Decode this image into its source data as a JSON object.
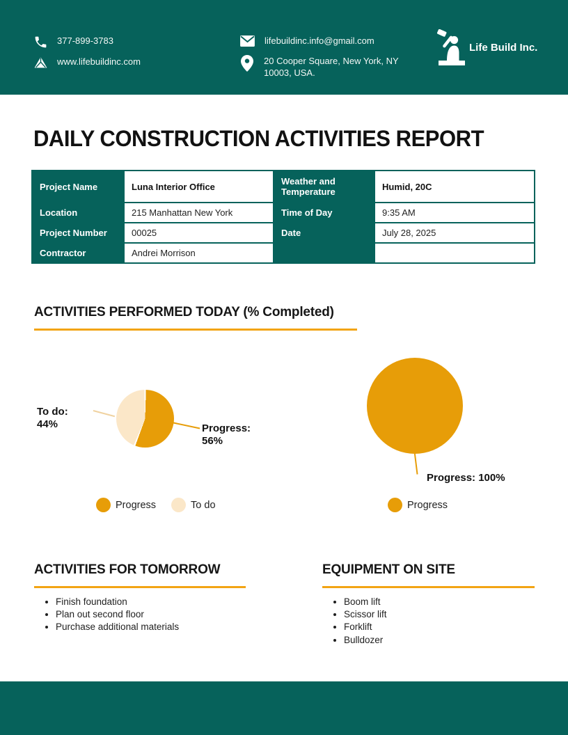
{
  "theme": {
    "teal": "#06625B",
    "orange": "#E79D08",
    "cream": "#FBE7C8",
    "underline_orange": "#F2A413"
  },
  "header": {
    "company": "Life Build Inc.",
    "phone": "377-899-3783",
    "website": "www.lifebuildinc.com",
    "email": "lifebuildinc.info@gmail.com",
    "address_line1": "20 Cooper Square, New York, NY",
    "address_line2": "10003, USA.",
    "icons": [
      "phone-icon",
      "drive-icon",
      "mail-icon",
      "location-pin-icon",
      "construction-worker-icon"
    ]
  },
  "title": "DAILY CONSTRUCTION ACTIVITIES REPORT",
  "project_table": {
    "rows": [
      {
        "label1": "Project Name",
        "value1": "Luna Interior Office",
        "label2": "Weather and Temperature",
        "value2": "Humid, 20C"
      },
      {
        "label1": "Location",
        "value1": "215 Manhattan New York",
        "label2": "Time of Day",
        "value2": "9:35 AM"
      },
      {
        "label1": "Project Number",
        "value1": "00025",
        "label2": "Date",
        "value2": "July 28, 2025"
      },
      {
        "label1": "Contractor",
        "value1": "Andrei Morrison",
        "label2": "",
        "value2": ""
      }
    ]
  },
  "activities_section": {
    "heading": "ACTIVITIES PERFORMED TODAY (% Completed)"
  },
  "chart_data": [
    {
      "type": "pie",
      "title": "Activity completion — task 1",
      "slices": [
        {
          "label": "Progress",
          "value": 56,
          "color": "#E79D08"
        },
        {
          "label": "To do",
          "value": 44,
          "color": "#FBE7C8"
        }
      ],
      "callout_right": "Progress: 56%",
      "callout_left": "To do: 44%",
      "legend": [
        {
          "label": "Progress",
          "color": "#E79D08"
        },
        {
          "label": "To do",
          "color": "#FBE7C8"
        }
      ],
      "legend_position": "bottom"
    },
    {
      "type": "pie",
      "title": "Activity completion — task 2",
      "slices": [
        {
          "label": "Progress",
          "value": 100,
          "color": "#E79D08"
        }
      ],
      "callout": "Progress: 100%",
      "legend": [
        {
          "label": "Progress",
          "color": "#E79D08"
        }
      ],
      "legend_position": "bottom"
    }
  ],
  "tomorrow_section": {
    "heading": "ACTIVITIES FOR TOMORROW",
    "items": [
      "Finish foundation",
      "Plan out second floor",
      "Purchase additional materials"
    ]
  },
  "equipment_section": {
    "heading": "EQUIPMENT ON SITE",
    "items": [
      "Boom lift",
      "Scissor lift",
      "Forklift",
      "Bulldozer"
    ]
  }
}
